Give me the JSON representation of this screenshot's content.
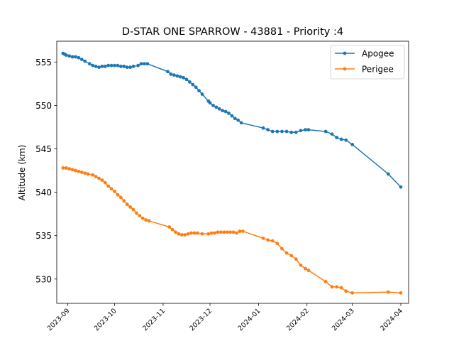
{
  "chart_data": {
    "type": "line",
    "title": "D-STAR ONE SPARROW - 43881 - Priority :4",
    "xlabel": "",
    "ylabel": "Altitude (km)",
    "xlim": [
      "2023-08-25",
      "2024-04-06"
    ],
    "ylim": [
      527.2,
      557.4
    ],
    "grid": false,
    "legend_position": "top-right",
    "x_ticks": [
      "2023-09",
      "2023-10",
      "2023-11",
      "2023-12",
      "2024-01",
      "2024-02",
      "2024-03",
      "2024-04"
    ],
    "y_ticks": [
      530,
      535,
      540,
      545,
      550,
      555
    ],
    "series": [
      {
        "name": "Apogee",
        "color": "#1f77b4",
        "points": [
          [
            "2023-08-29",
            556.0
          ],
          [
            "2023-08-30",
            555.9
          ],
          [
            "2023-08-31",
            555.8
          ],
          [
            "2023-09-02",
            555.7
          ],
          [
            "2023-09-04",
            555.6
          ],
          [
            "2023-09-06",
            555.6
          ],
          [
            "2023-09-08",
            555.5
          ],
          [
            "2023-09-10",
            555.3
          ],
          [
            "2023-09-12",
            555.1
          ],
          [
            "2023-09-15",
            554.8
          ],
          [
            "2023-09-17",
            554.6
          ],
          [
            "2023-09-19",
            554.5
          ],
          [
            "2023-09-21",
            554.4
          ],
          [
            "2023-09-23",
            554.5
          ],
          [
            "2023-09-25",
            554.5
          ],
          [
            "2023-09-27",
            554.6
          ],
          [
            "2023-09-29",
            554.6
          ],
          [
            "2023-10-01",
            554.6
          ],
          [
            "2023-10-03",
            554.6
          ],
          [
            "2023-10-05",
            554.5
          ],
          [
            "2023-10-07",
            554.5
          ],
          [
            "2023-10-09",
            554.4
          ],
          [
            "2023-10-11",
            554.4
          ],
          [
            "2023-10-13",
            554.5
          ],
          [
            "2023-10-16",
            554.6
          ],
          [
            "2023-10-18",
            554.8
          ],
          [
            "2023-10-20",
            554.8
          ],
          [
            "2023-10-22",
            554.8
          ],
          [
            "2023-11-04",
            553.9
          ],
          [
            "2023-11-06",
            553.6
          ],
          [
            "2023-11-08",
            553.5
          ],
          [
            "2023-11-10",
            553.4
          ],
          [
            "2023-11-12",
            553.3
          ],
          [
            "2023-11-14",
            553.2
          ],
          [
            "2023-11-16",
            553.0
          ],
          [
            "2023-11-18",
            552.7
          ],
          [
            "2023-11-20",
            552.4
          ],
          [
            "2023-11-22",
            552.1
          ],
          [
            "2023-11-24",
            551.7
          ],
          [
            "2023-11-26",
            551.3
          ],
          [
            "2023-11-30",
            550.5
          ],
          [
            "2023-12-01",
            550.3
          ],
          [
            "2023-12-03",
            550.0
          ],
          [
            "2023-12-05",
            549.8
          ],
          [
            "2023-12-07",
            549.6
          ],
          [
            "2023-12-09",
            549.4
          ],
          [
            "2023-12-11",
            549.3
          ],
          [
            "2023-12-13",
            549.1
          ],
          [
            "2023-12-15",
            548.8
          ],
          [
            "2023-12-17",
            548.5
          ],
          [
            "2023-12-19",
            548.3
          ],
          [
            "2023-12-21",
            548.0
          ],
          [
            "2024-01-04",
            547.4
          ],
          [
            "2024-01-07",
            547.2
          ],
          [
            "2024-01-10",
            547.0
          ],
          [
            "2024-01-13",
            547.0
          ],
          [
            "2024-01-16",
            547.0
          ],
          [
            "2024-01-19",
            547.0
          ],
          [
            "2024-01-22",
            546.9
          ],
          [
            "2024-01-25",
            546.9
          ],
          [
            "2024-01-28",
            547.1
          ],
          [
            "2024-01-31",
            547.2
          ],
          [
            "2024-02-02",
            547.2
          ],
          [
            "2024-02-13",
            547.0
          ],
          [
            "2024-02-17",
            546.7
          ],
          [
            "2024-02-20",
            546.3
          ],
          [
            "2024-02-23",
            546.1
          ],
          [
            "2024-02-26",
            546.0
          ],
          [
            "2024-03-01",
            545.5
          ],
          [
            "2024-03-24",
            542.1
          ],
          [
            "2024-04-01",
            540.6
          ]
        ]
      },
      {
        "name": "Perigee",
        "color": "#ff7f0e",
        "points": [
          [
            "2023-08-29",
            542.8
          ],
          [
            "2023-08-31",
            542.8
          ],
          [
            "2023-09-02",
            542.7
          ],
          [
            "2023-09-04",
            542.6
          ],
          [
            "2023-09-06",
            542.5
          ],
          [
            "2023-09-08",
            542.4
          ],
          [
            "2023-09-10",
            542.3
          ],
          [
            "2023-09-12",
            542.2
          ],
          [
            "2023-09-14",
            542.1
          ],
          [
            "2023-09-17",
            542.0
          ],
          [
            "2023-09-19",
            541.8
          ],
          [
            "2023-09-21",
            541.6
          ],
          [
            "2023-09-23",
            541.4
          ],
          [
            "2023-09-25",
            541.1
          ],
          [
            "2023-09-27",
            540.7
          ],
          [
            "2023-09-29",
            540.4
          ],
          [
            "2023-10-01",
            540.1
          ],
          [
            "2023-10-03",
            539.7
          ],
          [
            "2023-10-05",
            539.4
          ],
          [
            "2023-10-07",
            539.0
          ],
          [
            "2023-10-09",
            538.6
          ],
          [
            "2023-10-11",
            538.3
          ],
          [
            "2023-10-13",
            538.0
          ],
          [
            "2023-10-15",
            537.6
          ],
          [
            "2023-10-17",
            537.3
          ],
          [
            "2023-10-19",
            537.0
          ],
          [
            "2023-10-21",
            536.8
          ],
          [
            "2023-10-23",
            536.7
          ],
          [
            "2023-11-05",
            536.0
          ],
          [
            "2023-11-07",
            535.7
          ],
          [
            "2023-11-09",
            535.4
          ],
          [
            "2023-11-11",
            535.2
          ],
          [
            "2023-11-13",
            535.1
          ],
          [
            "2023-11-15",
            535.1
          ],
          [
            "2023-11-17",
            535.2
          ],
          [
            "2023-11-19",
            535.3
          ],
          [
            "2023-11-21",
            535.3
          ],
          [
            "2023-11-23",
            535.3
          ],
          [
            "2023-11-26",
            535.2
          ],
          [
            "2023-11-30",
            535.2
          ],
          [
            "2023-12-02",
            535.3
          ],
          [
            "2023-12-04",
            535.3
          ],
          [
            "2023-12-06",
            535.4
          ],
          [
            "2023-12-08",
            535.4
          ],
          [
            "2023-12-10",
            535.4
          ],
          [
            "2023-12-12",
            535.4
          ],
          [
            "2023-12-14",
            535.4
          ],
          [
            "2023-12-16",
            535.4
          ],
          [
            "2023-12-18",
            535.3
          ],
          [
            "2023-12-20",
            535.5
          ],
          [
            "2023-12-22",
            535.5
          ],
          [
            "2024-01-04",
            534.7
          ],
          [
            "2024-01-07",
            534.5
          ],
          [
            "2024-01-10",
            534.4
          ],
          [
            "2024-01-13",
            534.1
          ],
          [
            "2024-01-16",
            533.5
          ],
          [
            "2024-01-19",
            533.0
          ],
          [
            "2024-01-22",
            532.7
          ],
          [
            "2024-01-25",
            532.3
          ],
          [
            "2024-01-28",
            531.6
          ],
          [
            "2024-01-31",
            531.2
          ],
          [
            "2024-02-02",
            531.0
          ],
          [
            "2024-02-13",
            529.7
          ],
          [
            "2024-02-17",
            529.1
          ],
          [
            "2024-02-20",
            529.1
          ],
          [
            "2024-02-23",
            529.0
          ],
          [
            "2024-02-26",
            528.6
          ],
          [
            "2024-03-01",
            528.4
          ],
          [
            "2024-03-24",
            528.5
          ],
          [
            "2024-04-01",
            528.4
          ]
        ]
      }
    ]
  }
}
